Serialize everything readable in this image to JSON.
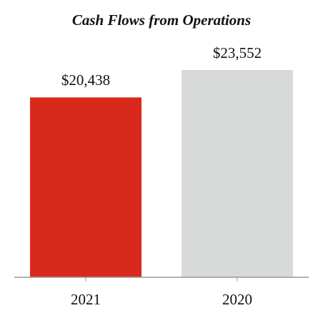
{
  "chart_data": {
    "type": "bar",
    "title": "Cash Flows from Operations",
    "categories": [
      "2021",
      "2020"
    ],
    "values": [
      20438,
      23552
    ],
    "value_labels": [
      "$20,438",
      "$23,552"
    ],
    "colors": [
      "#d9291c",
      "#d8d9d9"
    ]
  }
}
